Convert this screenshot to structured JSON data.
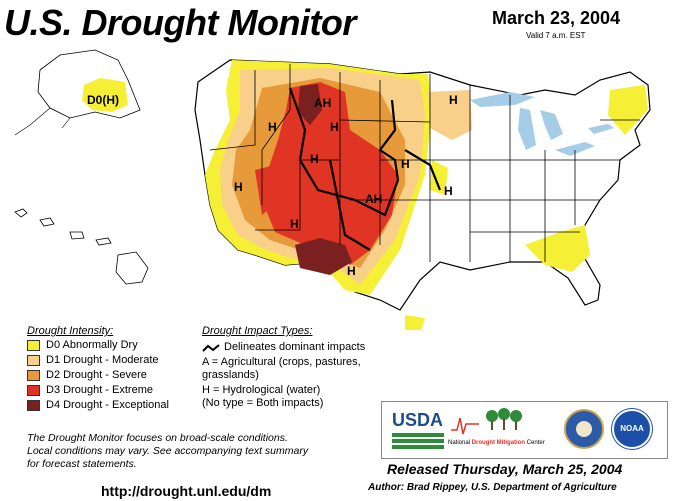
{
  "header": {
    "title": "U.S. Drought Monitor",
    "date": "March 23, 2004",
    "valid": "Valid 7 a.m. EST"
  },
  "colors": {
    "d0": "#f5ef36",
    "d1": "#f8d08a",
    "d2": "#e69a3a",
    "d3": "#e03425",
    "d4": "#7a2020",
    "water": "#a5cde8",
    "river": "#6f9fd8",
    "border": "#000000"
  },
  "map_labels": {
    "alaska": "D0(H)",
    "ah_north": "AH",
    "ah_plains": "AH",
    "h_idaho": "H",
    "h_wyoming": "H",
    "h_nevada": "H",
    "h_utah": "H",
    "h_arizona": "H",
    "h_newmexico": "H",
    "h_nebraska": "H",
    "h_iowa": "H",
    "h_minnesota": "H"
  },
  "legend_intensity": {
    "heading": "Drought Intensity:",
    "items": [
      {
        "label": "D0 Abnormally Dry",
        "color": "#f5ef36"
      },
      {
        "label": "D1 Drought - Moderate",
        "color": "#f8d08a"
      },
      {
        "label": "D2 Drought - Severe",
        "color": "#e69a3a"
      },
      {
        "label": "D3 Drought - Extreme",
        "color": "#e03425"
      },
      {
        "label": "D4 Drought - Exceptional",
        "color": "#7a2020"
      }
    ]
  },
  "legend_impact": {
    "heading": "Drought Impact Types:",
    "line": "Delineates dominant impacts",
    "a1": "A = Agricultural (crops, pastures,",
    "a2": "grasslands)",
    "h": "H = Hydrological (water)",
    "none": "(No type = Both impacts)"
  },
  "note": {
    "l1": "The Drought Monitor focuses on broad-scale conditions.",
    "l2": "Local conditions may vary.  See accompanying text summary",
    "l3": "for forecast statements."
  },
  "url": "http://drought.unl.edu/dm",
  "logos": {
    "usda": "USDA",
    "ndmc_prefix": "National ",
    "ndmc_main": "Drought Mitigation",
    "ndmc_suffix": " Center",
    "noaa": "NOAA"
  },
  "released": "Released Thursday, March 25, 2004",
  "author": "Author: Brad Rippey, U.S. Department of Agriculture"
}
